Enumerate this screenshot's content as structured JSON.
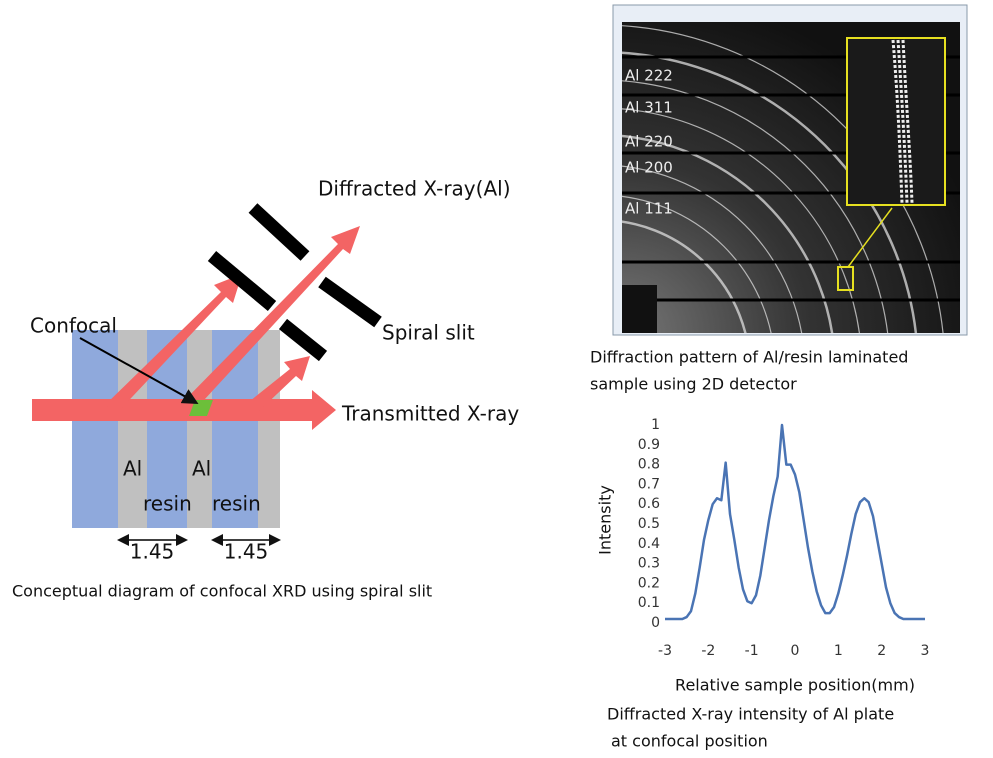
{
  "diagram": {
    "diffracted": "Diffracted X-ray(Al)",
    "transmitted": "Transmitted X-ray",
    "slit": "Spiral slit",
    "confocal": "Confocal",
    "layers": [
      "Al",
      "resin",
      "Al",
      "resin"
    ],
    "widths": [
      1.45,
      1.45
    ],
    "caption": "Conceptual diagram of confocal XRD using spiral slit"
  },
  "pattern": {
    "ring_labels": [
      "Al 222",
      "Al 311",
      "Al 220",
      "Al 200",
      "Al 111"
    ],
    "caption": [
      "Diffraction pattern of Al/resin laminated",
      "sample using 2D detector"
    ]
  },
  "chart_data": {
    "type": "line",
    "x": [
      -3,
      -2.9,
      -2.8,
      -2.7,
      -2.6,
      -2.5,
      -2.4,
      -2.3,
      -2.2,
      -2.1,
      -2,
      -1.9,
      -1.8,
      -1.7,
      -1.6,
      -1.5,
      -1.4,
      -1.3,
      -1.2,
      -1.1,
      -1,
      -0.9,
      -0.8,
      -0.7,
      -0.6,
      -0.5,
      -0.4,
      -0.3,
      -0.2,
      -0.1,
      0,
      0.1,
      0.2,
      0.3,
      0.4,
      0.5,
      0.6,
      0.7,
      0.8,
      0.9,
      1,
      1.1,
      1.2,
      1.3,
      1.4,
      1.5,
      1.6,
      1.7,
      1.8,
      1.9,
      2,
      2.1,
      2.2,
      2.3,
      2.4,
      2.5,
      2.6,
      2.7,
      2.8,
      2.9,
      3
    ],
    "values": [
      0.02,
      0.02,
      0.02,
      0.02,
      0.02,
      0.03,
      0.06,
      0.15,
      0.28,
      0.42,
      0.52,
      0.6,
      0.63,
      0.62,
      0.81,
      0.55,
      0.42,
      0.28,
      0.17,
      0.11,
      0.1,
      0.14,
      0.24,
      0.38,
      0.52,
      0.64,
      0.74,
      1,
      0.8,
      0.8,
      0.75,
      0.66,
      0.52,
      0.38,
      0.26,
      0.16,
      0.09,
      0.05,
      0.05,
      0.08,
      0.15,
      0.24,
      0.34,
      0.45,
      0.55,
      0.61,
      0.63,
      0.61,
      0.54,
      0.42,
      0.3,
      0.18,
      0.1,
      0.05,
      0.03,
      0.02,
      0.02,
      0.02,
      0.02,
      0.02,
      0.02
    ],
    "color": "#4a74b4",
    "xlim": [
      -3,
      3
    ],
    "xticks": [
      -3,
      -2,
      -1,
      0,
      1,
      2,
      3
    ],
    "ylim": [
      0,
      1
    ],
    "yticks": [
      0,
      0.1,
      0.2,
      0.3,
      0.4,
      0.5,
      0.6,
      0.7,
      0.8,
      0.9,
      1
    ],
    "ylabel": "Intensity",
    "xlabel": "Relative sample position(mm)",
    "caption": [
      "Diffracted X-ray intensity of Al plate",
      "at confocal position"
    ],
    "grid": false
  }
}
